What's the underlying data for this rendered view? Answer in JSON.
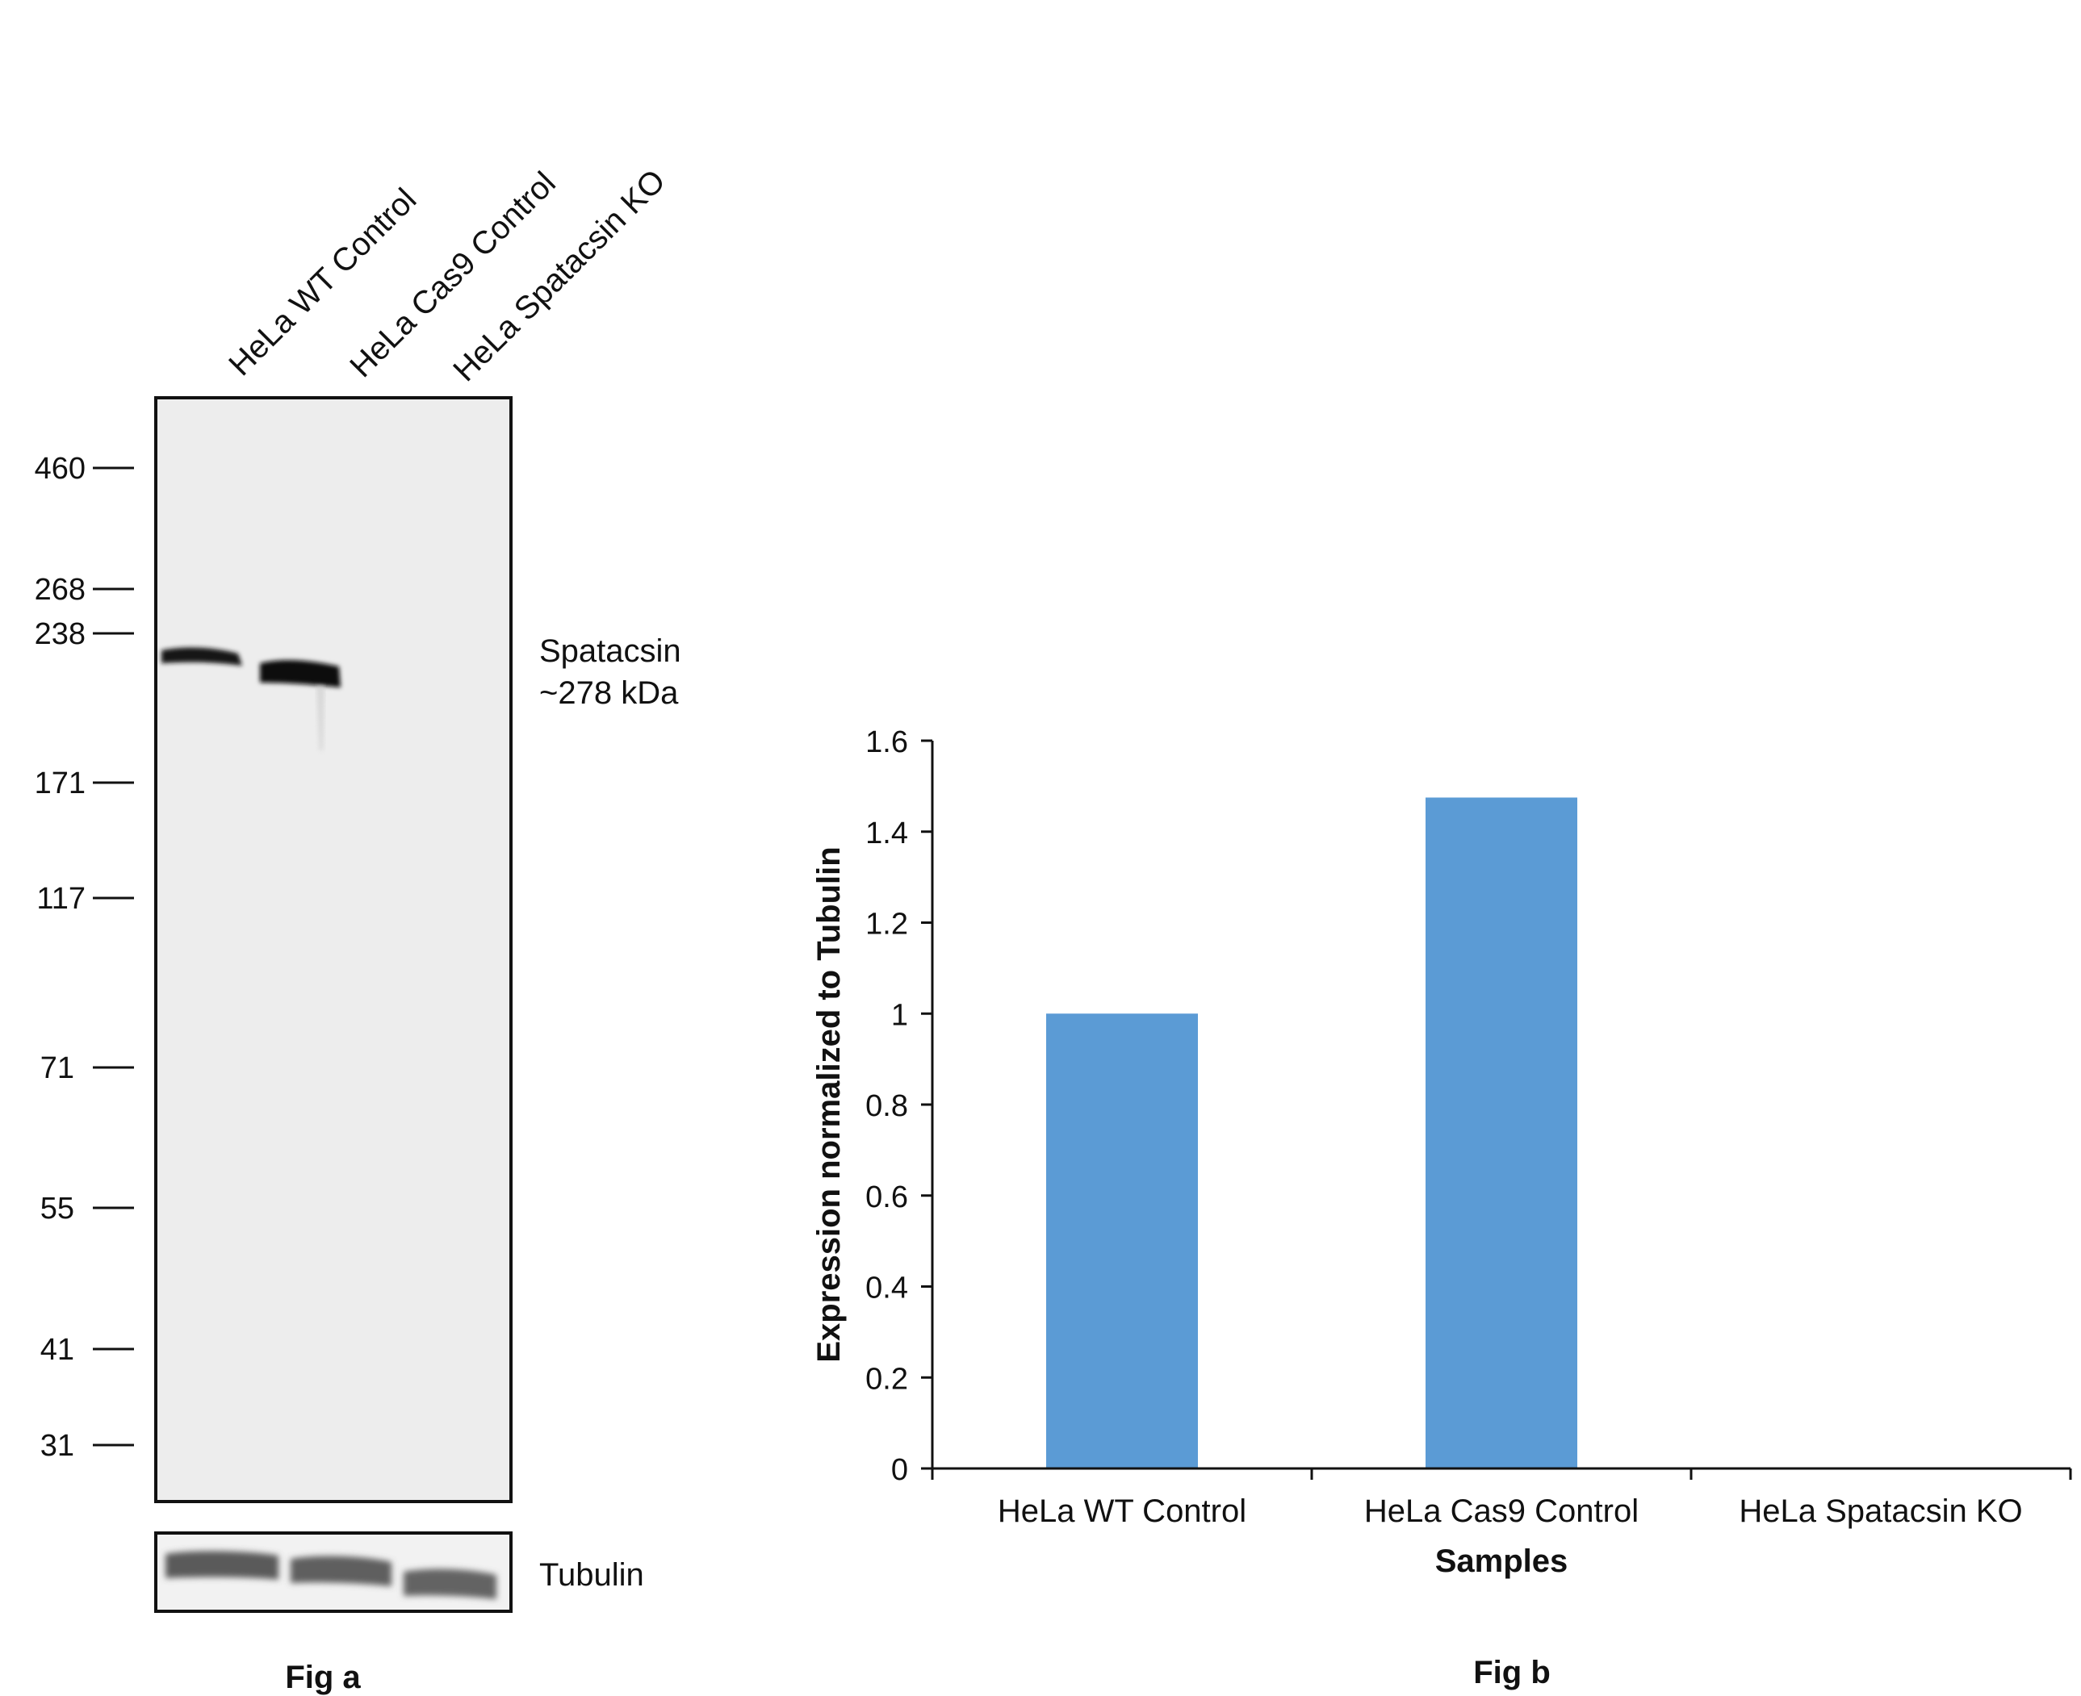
{
  "fig_a": {
    "caption": "Fig a",
    "lane_labels": [
      "HeLa WT Control",
      "HeLa Cas9 Control",
      "HeLa Spatacsin KO"
    ],
    "marker_labels": [
      "460",
      "268",
      "238",
      "171",
      "117",
      "71",
      "55",
      "41",
      "31"
    ],
    "band_label_line1": "Spatacsin",
    "band_label_line2": "~278 kDa",
    "loading_label": "Tubulin"
  },
  "fig_b": {
    "caption": "Fig b",
    "chart_data": {
      "type": "bar",
      "categories": [
        "HeLa WT Control",
        "HeLa Cas9 Control",
        "HeLa Spatacsin KO"
      ],
      "values": [
        1.0,
        1.475,
        0.0
      ],
      "xlabel": "Samples",
      "ylabel": "Expression normalized to Tubulin",
      "ylim": [
        0,
        1.6
      ],
      "yticks": [
        "0",
        "0.2",
        "0.4",
        "0.6",
        "0.8",
        "1",
        "1.2",
        "1.4",
        "1.6"
      ],
      "bar_color": "#5b9bd5",
      "grid": false
    }
  }
}
